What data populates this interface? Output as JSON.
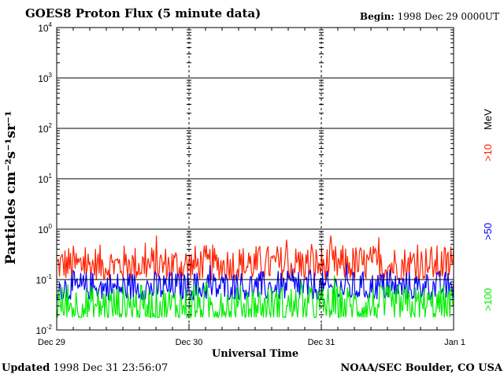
{
  "header": {
    "title": "GOES8 Proton Flux (5 minute data)",
    "begin_label": "Begin:",
    "begin_value": "1998 Dec 29 0000UT"
  },
  "footer": {
    "updated_label": "Updated",
    "updated_value": "1998 Dec 31 23:56:07",
    "credit": "NOAA/SEC Boulder, CO USA"
  },
  "chart_data": {
    "type": "line",
    "title": "GOES8 Proton Flux (5 minute data)",
    "xlabel": "Universal Time",
    "ylabel": "Particles cm⁻²s⁻¹sr⁻¹",
    "y_scale": "log",
    "ylim": [
      0.01,
      10000
    ],
    "y_ticks": [
      {
        "value": 0.01,
        "base": "10",
        "exp": "-2"
      },
      {
        "value": 0.1,
        "base": "10",
        "exp": "-1"
      },
      {
        "value": 1,
        "base": "10",
        "exp": "0"
      },
      {
        "value": 10,
        "base": "10",
        "exp": "1"
      },
      {
        "value": 100,
        "base": "10",
        "exp": "2"
      },
      {
        "value": 1000,
        "base": "10",
        "exp": "3"
      },
      {
        "value": 10000,
        "base": "10",
        "exp": "4"
      }
    ],
    "x_ticks": [
      "Dec 29",
      "Dec 30",
      "Dec 31",
      "Jan 1"
    ],
    "xlim": [
      "1998-12-29",
      "1999-01-01"
    ],
    "grid": true,
    "legend_position": "right, vertical",
    "legend_unit": "MeV",
    "series": [
      {
        "name": ">10",
        "color": "#ff2200",
        "typical_range": [
          0.1,
          0.5
        ]
      },
      {
        "name": ">50",
        "color": "#0000ff",
        "typical_range": [
          0.04,
          0.15
        ]
      },
      {
        "name": ">100",
        "color": "#00ee00",
        "typical_range": [
          0.015,
          0.08
        ]
      }
    ]
  }
}
